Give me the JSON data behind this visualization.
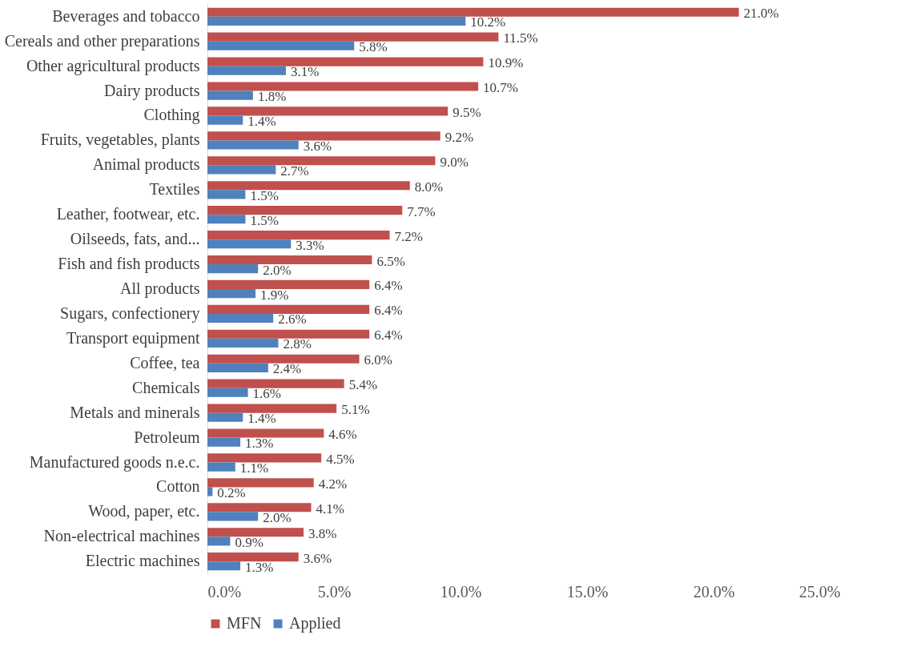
{
  "chart_data": {
    "type": "bar",
    "orientation": "horizontal",
    "categories": [
      "Beverages and tobacco",
      "Cereals and other preparations",
      "Other agricultural products",
      "Dairy products",
      "Clothing",
      "Fruits, vegetables, plants",
      "Animal products",
      "Textiles",
      "Leather, footwear, etc.",
      "Oilseeds, fats, and...",
      "Fish and fish products",
      "All products",
      "Sugars, confectionery",
      "Transport equipment",
      "Coffee, tea",
      "Chemicals",
      "Metals and minerals",
      "Petroleum",
      "Manufactured goods n.e.c.",
      "Cotton",
      "Wood, paper, etc.",
      "Non-electrical machines",
      "Electric machines"
    ],
    "series": [
      {
        "name": "MFN",
        "color": "#c0504d",
        "values": [
          21.0,
          11.5,
          10.9,
          10.7,
          9.5,
          9.2,
          9.0,
          8.0,
          7.7,
          7.2,
          6.5,
          6.4,
          6.4,
          6.4,
          6.0,
          5.4,
          5.1,
          4.6,
          4.5,
          4.2,
          4.1,
          3.8,
          3.6
        ],
        "value_labels": [
          "21.0%",
          "11.5%",
          "10.9%",
          "10.7%",
          "9.5%",
          "9.2%",
          "9.0%",
          "8.0%",
          "7.7%",
          "7.2%",
          "6.5%",
          "6.4%",
          "6.4%",
          "6.4%",
          "6.0%",
          "5.4%",
          "5.1%",
          "4.6%",
          "4.5%",
          "4.2%",
          "4.1%",
          "3.8%",
          "3.6%"
        ]
      },
      {
        "name": "Applied",
        "color": "#4f81bd",
        "values": [
          10.2,
          5.8,
          3.1,
          1.8,
          1.4,
          3.6,
          2.7,
          1.5,
          1.5,
          3.3,
          2.0,
          1.9,
          2.6,
          2.8,
          2.4,
          1.6,
          1.4,
          1.3,
          1.1,
          0.2,
          2.0,
          0.9,
          1.3
        ],
        "value_labels": [
          "10.2%",
          "5.8%",
          "3.1%",
          "1.8%",
          "1.4%",
          "3.6%",
          "2.7%",
          "1.5%",
          "1.5%",
          "3.3%",
          "2.0%",
          "1.9%",
          "2.6%",
          "2.8%",
          "2.4%",
          "1.6%",
          "1.4%",
          "1.3%",
          "1.1%",
          "0.2%",
          "2.0%",
          "0.9%",
          "1.3%"
        ]
      }
    ],
    "xlim": [
      0,
      25
    ],
    "xticks": [
      {
        "value": 0,
        "label": "0.0%"
      },
      {
        "value": 5,
        "label": "5.0%"
      },
      {
        "value": 10,
        "label": "10.0%"
      },
      {
        "value": 15,
        "label": "15.0%"
      },
      {
        "value": 20,
        "label": "20.0%"
      },
      {
        "value": 25,
        "label": "25.0%"
      }
    ],
    "grid": false,
    "legend": "bottom"
  }
}
